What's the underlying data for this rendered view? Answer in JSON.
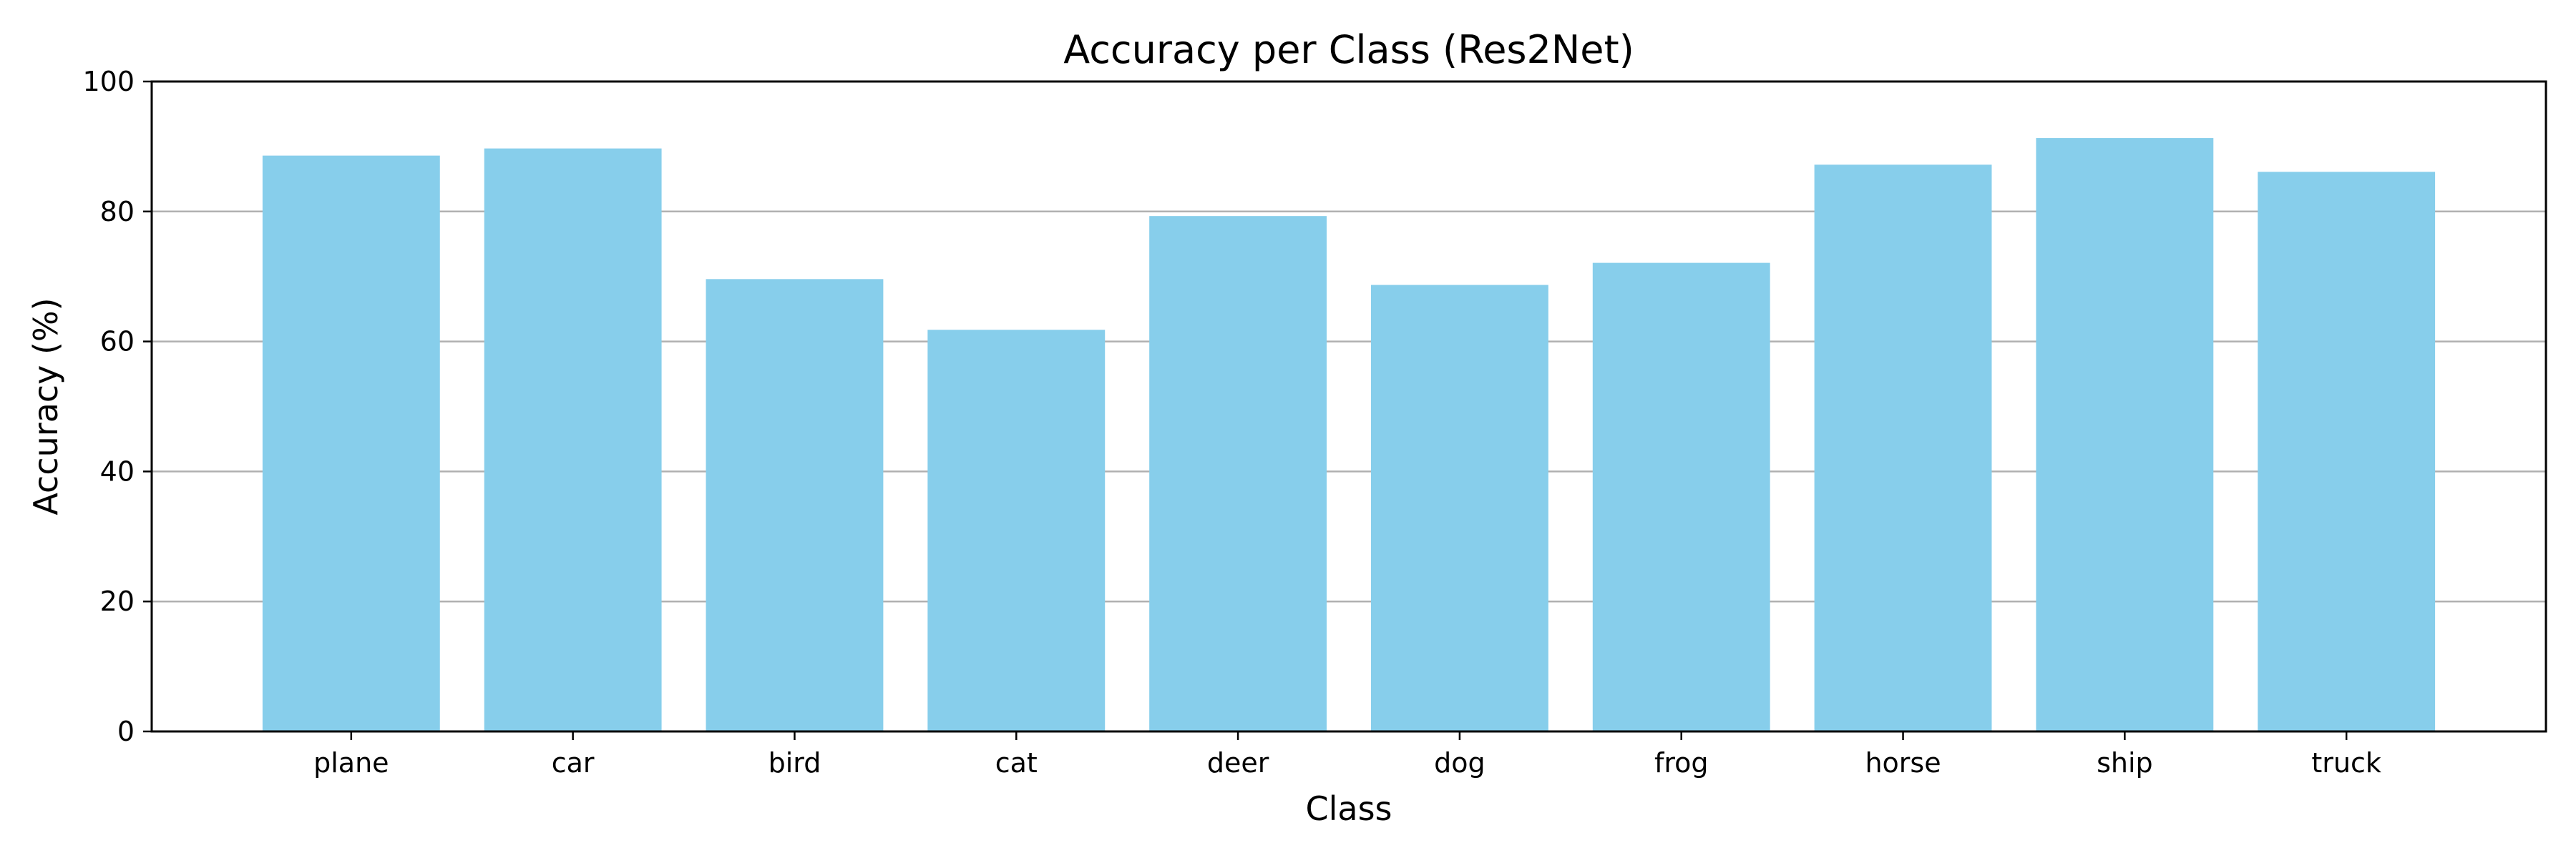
{
  "chart_data": {
    "type": "bar",
    "title": "Accuracy per Class (Res2Net)",
    "xlabel": "Class",
    "ylabel": "Accuracy (%)",
    "categories": [
      "plane",
      "car",
      "bird",
      "cat",
      "deer",
      "dog",
      "frog",
      "horse",
      "ship",
      "truck"
    ],
    "values": [
      88.6,
      89.7,
      69.6,
      61.8,
      79.3,
      68.7,
      72.1,
      87.2,
      91.3,
      86.1
    ],
    "ylim": [
      0,
      100
    ],
    "yticks": [
      0,
      20,
      40,
      60,
      80,
      100
    ],
    "ytick_labels": [
      "0",
      "20",
      "40",
      "60",
      "80",
      "100"
    ],
    "grid": "horizontal",
    "legend": "none",
    "colors": {
      "bar": "#87CEEB",
      "grid": "#b0b0b0",
      "axis": "#000000",
      "text": "#000000"
    }
  }
}
